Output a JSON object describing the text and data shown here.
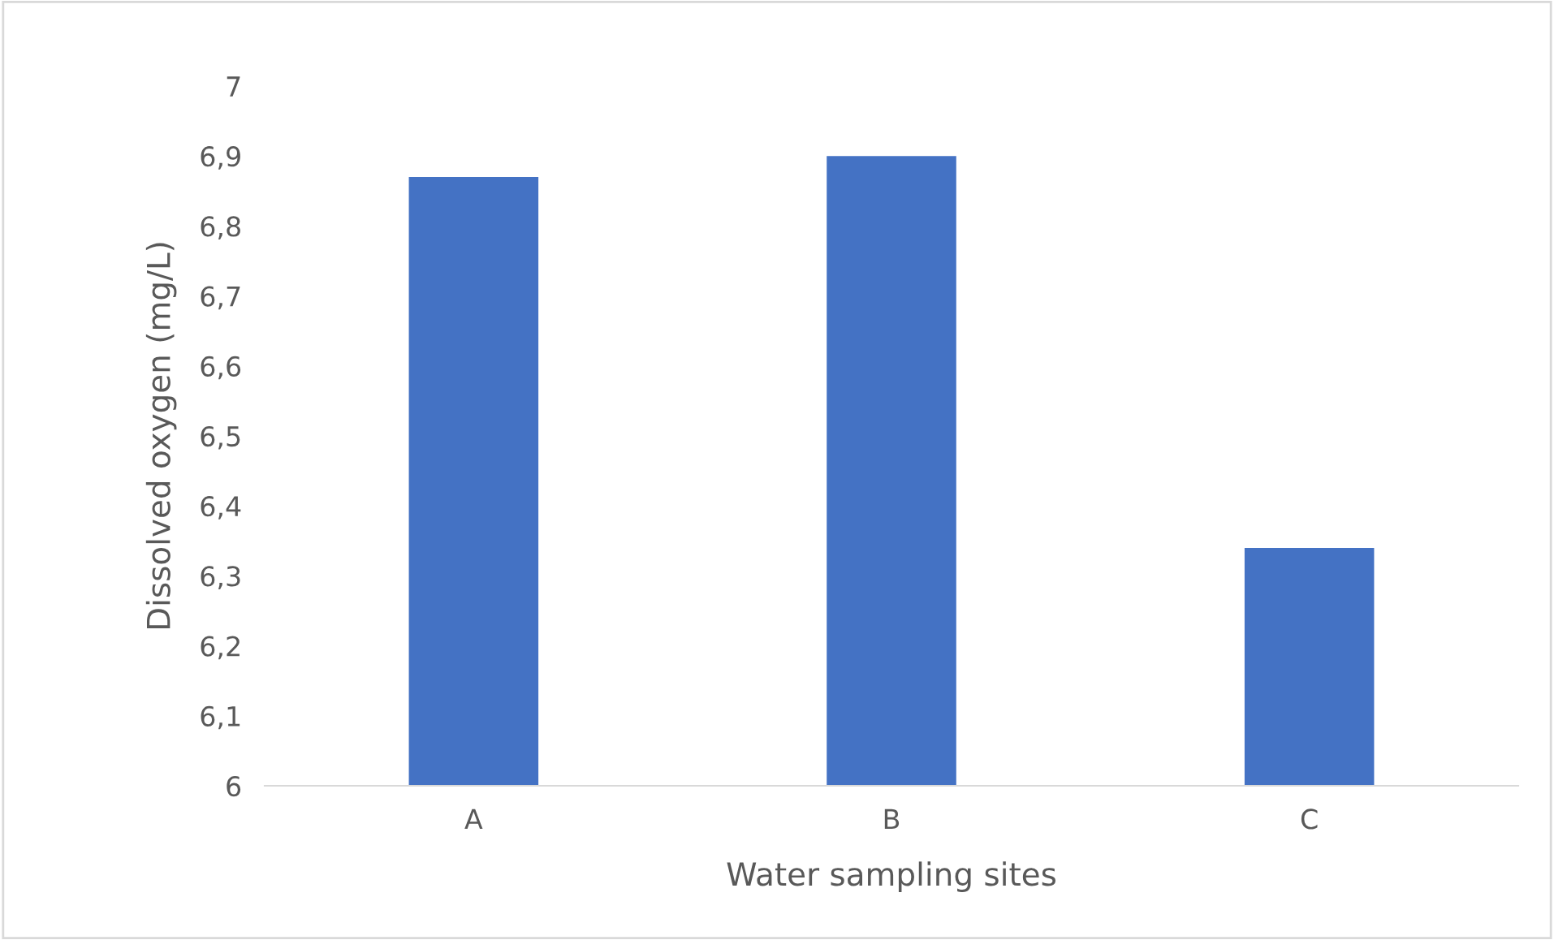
{
  "chart_data": {
    "type": "bar",
    "xlabel": "Water sampling sites",
    "ylabel": "Dissolved oxygen (mg/L)",
    "categories": [
      "A",
      "B",
      "C"
    ],
    "values": [
      6.87,
      6.9,
      6.34
    ],
    "color": "#4472c4",
    "ylim": [
      6,
      7
    ],
    "yticks": [
      6,
      {
        "value": 6.1,
        "label": "6,1"
      },
      {
        "value": 6.2,
        "label": "6,2"
      },
      {
        "value": 6.3,
        "label": "6,3"
      },
      {
        "value": 6.4,
        "label": "6,4"
      },
      {
        "value": 6.5,
        "label": "6,5"
      },
      {
        "value": 6.6,
        "label": "6,6"
      },
      {
        "value": 6.7,
        "label": "6,7"
      },
      {
        "value": 6.8,
        "label": "6,8"
      },
      {
        "value": 6.9,
        "label": "6,9"
      },
      7
    ],
    "grid": false,
    "legend": false
  }
}
